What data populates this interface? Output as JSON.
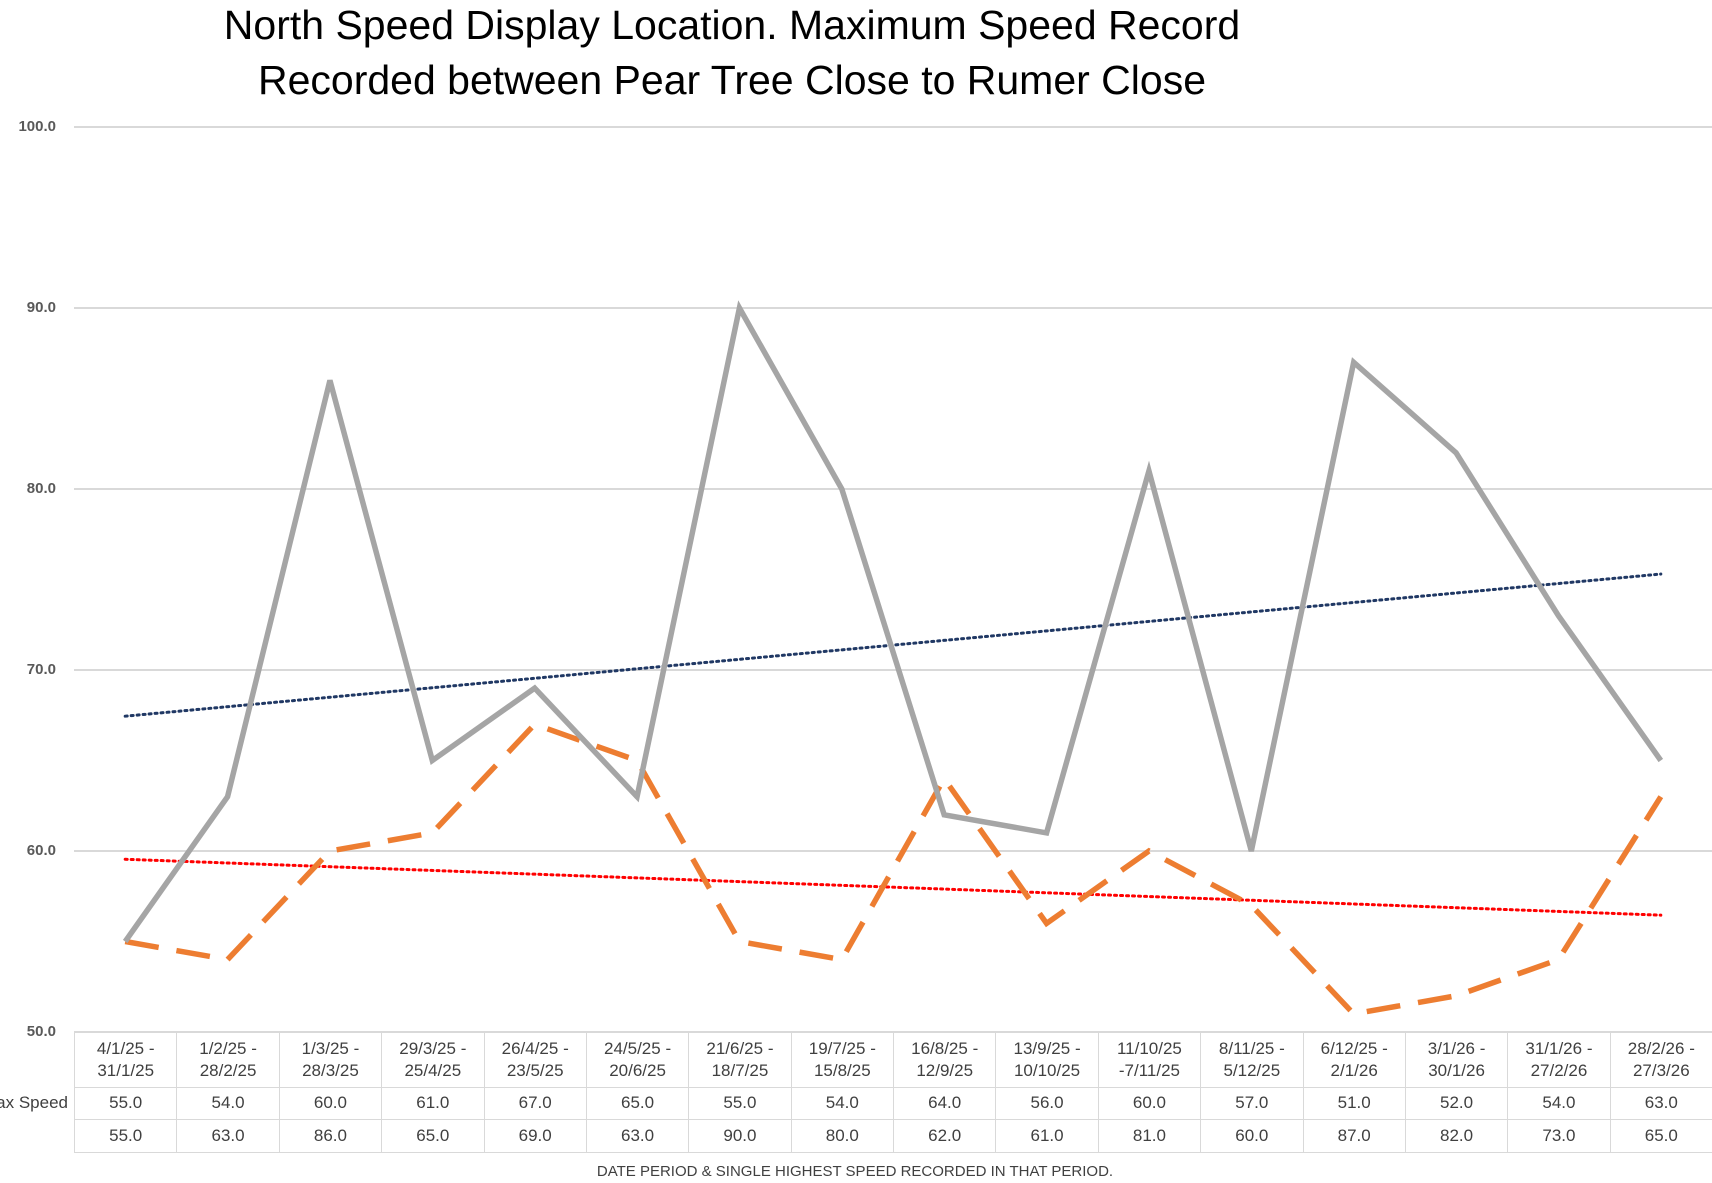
{
  "chart_data": {
    "type": "line",
    "title": [
      "North Speed Display Location. Maximum Speed Record",
      "Recorded between Pear Tree Close to Rumer Close"
    ],
    "x_label": "DATE PERIOD & SINGLE HIGHEST SPEED RECORDED IN THAT PERIOD.",
    "categories": [
      "4/1/25 -\n31/1/25",
      "1/2/25 -\n28/2/25",
      "1/3/25 -\n28/3/25",
      "29/3/25 -\n25/4/25",
      "26/4/25 -\n23/5/25",
      "24/5/25 -\n20/6/25",
      "21/6/25 -\n18/7/25",
      "19/7/25 -\n15/8/25",
      "16/8/25 -\n12/9/25",
      "13/9/25 -\n10/10/25",
      "11/10/25\n-7/11/25",
      "8/11/25 -\n5/12/25",
      "6/12/25 -\n2/1/26",
      "3/1/26 -\n30/1/26",
      "31/1/26 -\n27/2/26",
      "28/2/26 -\n27/3/26"
    ],
    "series": [
      {
        "name": "ax Speed",
        "color": "#ed7d31",
        "dash": "dashed",
        "values": [
          55,
          54,
          60,
          61,
          67,
          65,
          55,
          54,
          64,
          56,
          60,
          57,
          51,
          52,
          54,
          63
        ],
        "value_labels": [
          "55.0",
          "54.0",
          "60.0",
          "61.0",
          "67.0",
          "65.0",
          "55.0",
          "54.0",
          "64.0",
          "56.0",
          "60.0",
          "57.0",
          "51.0",
          "52.0",
          "54.0",
          "63.0"
        ],
        "trendline": {
          "color": "#ff0000"
        }
      },
      {
        "color": "#a5a5a5",
        "dash": "solid",
        "values": [
          55,
          63,
          86,
          65,
          69,
          63,
          90,
          80,
          62,
          61,
          81,
          60,
          87,
          82,
          73,
          65
        ],
        "value_labels": [
          "55.0",
          "63.0",
          "86.0",
          "65.0",
          "69.0",
          "63.0",
          "90.0",
          "80.0",
          "62.0",
          "61.0",
          "81.0",
          "60.0",
          "87.0",
          "82.0",
          "73.0",
          "65.0"
        ],
        "trendline": {
          "color": "#203864"
        }
      }
    ],
    "ylim": [
      50,
      100
    ],
    "yticks": [
      {
        "value": 50,
        "label": "50.0"
      },
      {
        "value": 60,
        "label": "60.0"
      },
      {
        "value": 70,
        "label": "70.0"
      },
      {
        "value": 80,
        "label": "80.0"
      },
      {
        "value": 90,
        "label": "90.0"
      },
      {
        "value": 100,
        "label": "100.0"
      }
    ],
    "grid": true
  }
}
